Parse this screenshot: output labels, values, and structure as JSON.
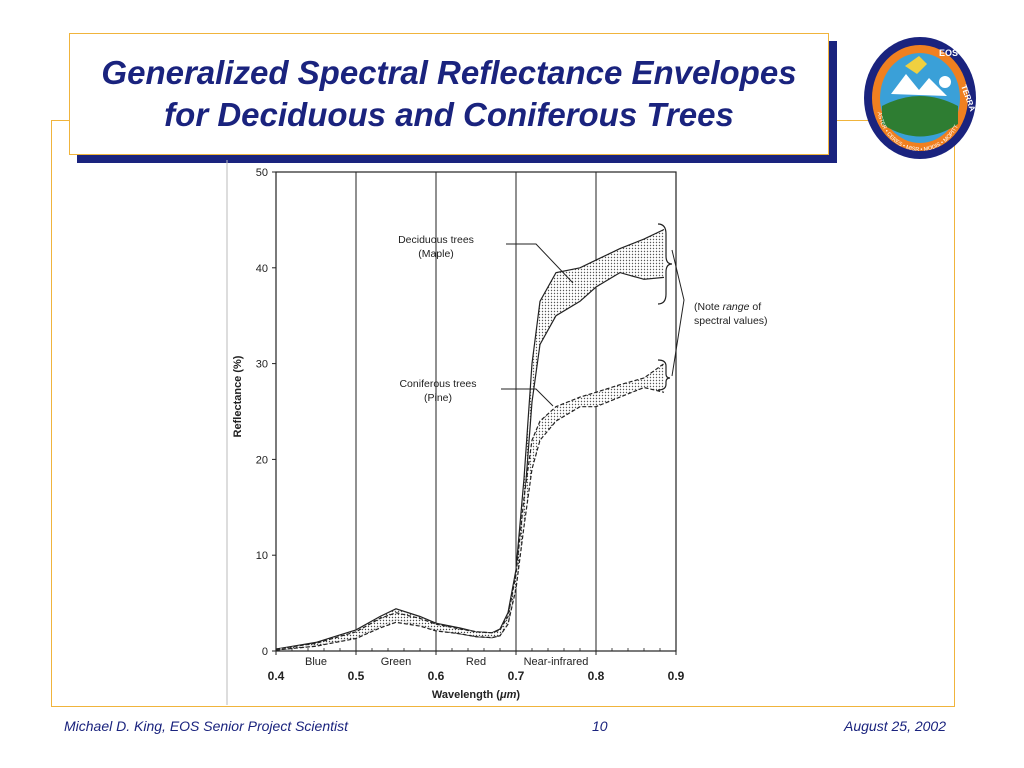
{
  "slide": {
    "title": "Generalized Spectral Reflectance Envelopes for Deciduous and Coniferous Trees",
    "footer": {
      "author": "Michael D. King, EOS Senior Project Scientist",
      "page": "10",
      "date": "August 25, 2002"
    },
    "logo": {
      "top_text": "EOS",
      "side_text": "TERRA",
      "ring_text": "ASTER • CERES • MISR • MODIS • MOPITT"
    },
    "colors": {
      "title": "#1a237e",
      "border": "#f0b43c",
      "footer": "#1a237e"
    }
  },
  "chart_data": {
    "type": "area",
    "xlabel_text": "Wavelength (",
    "xlabel_unit": "μm",
    "xlabel_close": ")",
    "ylabel": "Reflectance (%)",
    "xlim": [
      0.4,
      0.9
    ],
    "ylim": [
      0,
      50
    ],
    "x_ticks": [
      "0.4",
      "0.5",
      "0.6",
      "0.7",
      "0.8",
      "0.9"
    ],
    "y_ticks": [
      "0",
      "10",
      "20",
      "30",
      "40",
      "50"
    ],
    "bands": [
      "Blue",
      "Green",
      "Red",
      "Near-infrared"
    ],
    "annotations": {
      "deciduous": [
        "Deciduous trees",
        "(Maple)"
      ],
      "coniferous": [
        "Coniferous trees",
        "(Pine)"
      ],
      "range_prefix": "(Note ",
      "range_italic": "range",
      "range_suffix": " of",
      "range_line2": "spectral values)"
    },
    "series": [
      {
        "name": "Deciduous trees (Maple)",
        "x": [
          0.4,
          0.45,
          0.5,
          0.53,
          0.55,
          0.58,
          0.6,
          0.63,
          0.65,
          0.67,
          0.68,
          0.69,
          0.7,
          0.71,
          0.72,
          0.73,
          0.75,
          0.78,
          0.8,
          0.83,
          0.86,
          0.885
        ],
        "upper": [
          0.2,
          0.9,
          2.2,
          3.6,
          4.4,
          3.6,
          2.9,
          2.4,
          2.0,
          1.9,
          2.3,
          4.0,
          8.5,
          18.0,
          30.0,
          36.5,
          39.5,
          40.0,
          40.8,
          42.0,
          43.0,
          44.0
        ],
        "lower": [
          0.1,
          0.6,
          1.4,
          2.6,
          3.3,
          2.7,
          2.2,
          1.8,
          1.5,
          1.4,
          1.6,
          3.0,
          7.0,
          15.0,
          26.0,
          32.0,
          35.0,
          36.5,
          38.0,
          39.5,
          38.8,
          39.0
        ]
      },
      {
        "name": "Coniferous trees (Pine)",
        "x": [
          0.4,
          0.45,
          0.5,
          0.53,
          0.55,
          0.58,
          0.6,
          0.63,
          0.65,
          0.67,
          0.68,
          0.69,
          0.7,
          0.71,
          0.72,
          0.73,
          0.75,
          0.78,
          0.8,
          0.83,
          0.86,
          0.885
        ],
        "upper": [
          0.2,
          0.8,
          2.0,
          3.4,
          4.0,
          3.4,
          2.8,
          2.3,
          2.0,
          1.9,
          2.2,
          3.6,
          8.0,
          16.0,
          22.0,
          24.0,
          25.5,
          26.5,
          27.0,
          27.8,
          28.5,
          30.0
        ],
        "lower": [
          0.1,
          0.5,
          1.3,
          2.4,
          3.0,
          2.6,
          2.1,
          1.8,
          1.5,
          1.4,
          1.6,
          2.8,
          6.5,
          13.0,
          19.0,
          22.0,
          24.0,
          25.5,
          25.5,
          26.5,
          27.5,
          27.0
        ]
      }
    ]
  }
}
